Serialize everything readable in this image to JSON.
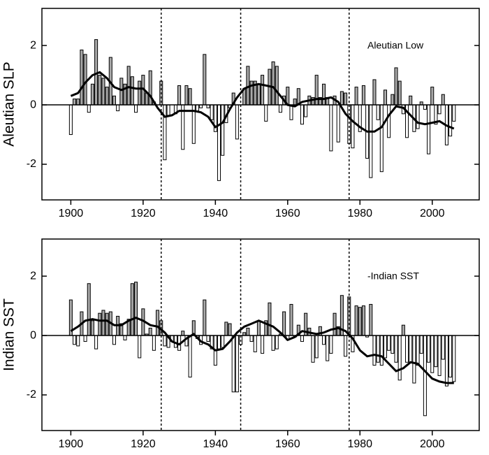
{
  "chart_data": [
    {
      "type": "bar",
      "ylabel": "Aleutian SLP",
      "annotation": "Aleutian Low",
      "positive_color": "#a9a9a9",
      "negative_color": "#ffffff",
      "xlim": [
        1892,
        2013
      ],
      "ylim": [
        -3.2,
        3.25
      ],
      "xticks": [
        1900,
        1920,
        1940,
        1960,
        1980,
        2000
      ],
      "yticks": [
        -2,
        0,
        2
      ],
      "vlines": [
        1925,
        1947,
        1977
      ],
      "x": [
        1900,
        1901,
        1902,
        1903,
        1904,
        1905,
        1906,
        1907,
        1908,
        1909,
        1910,
        1911,
        1912,
        1913,
        1914,
        1915,
        1916,
        1917,
        1918,
        1919,
        1920,
        1921,
        1922,
        1923,
        1924,
        1925,
        1926,
        1927,
        1928,
        1929,
        1930,
        1931,
        1932,
        1933,
        1934,
        1935,
        1936,
        1937,
        1938,
        1939,
        1940,
        1941,
        1942,
        1943,
        1944,
        1945,
        1946,
        1947,
        1948,
        1949,
        1950,
        1951,
        1952,
        1953,
        1954,
        1955,
        1956,
        1957,
        1958,
        1959,
        1960,
        1961,
        1962,
        1963,
        1964,
        1965,
        1966,
        1967,
        1968,
        1969,
        1970,
        1971,
        1972,
        1973,
        1974,
        1975,
        1976,
        1977,
        1978,
        1979,
        1980,
        1981,
        1982,
        1983,
        1984,
        1985,
        1986,
        1987,
        1988,
        1989,
        1990,
        1991,
        1992,
        1993,
        1994,
        1995,
        1996,
        1997,
        1998,
        1999,
        2000,
        2001,
        2002,
        2003,
        2004,
        2005,
        2006
      ],
      "values": [
        -1.0,
        0.2,
        0.2,
        1.85,
        1.7,
        -0.25,
        0.7,
        2.2,
        1.0,
        0.9,
        0.6,
        1.6,
        0.3,
        -0.2,
        0.9,
        0.7,
        1.3,
        0.95,
        -0.25,
        0.8,
        1.0,
        0.4,
        1.15,
        0.1,
        0.0,
        0.8,
        -1.85,
        -0.35,
        0.0,
        -0.3,
        0.65,
        -1.5,
        0.65,
        0.55,
        -1.3,
        -0.2,
        -0.1,
        1.7,
        -0.1,
        -0.5,
        -0.9,
        -2.55,
        -1.7,
        -0.6,
        -0.1,
        0.4,
        -1.15,
        0.0,
        0.55,
        1.3,
        0.8,
        0.8,
        0.7,
        1.0,
        -0.55,
        1.2,
        1.45,
        1.3,
        -0.25,
        0.3,
        0.6,
        -0.5,
        0.2,
        0.55,
        -0.65,
        -0.4,
        0.3,
        0.25,
        1.0,
        0.25,
        0.7,
        0.25,
        -1.55,
        0.3,
        -1.25,
        0.45,
        0.4,
        -1.3,
        -1.45,
        0.6,
        -0.9,
        0.65,
        -1.8,
        -2.45,
        0.85,
        -0.5,
        -2.25,
        0.5,
        -1.1,
        0.35,
        1.25,
        0.8,
        -0.3,
        -1.1,
        0.3,
        -0.9,
        -0.8,
        0.1,
        -0.15,
        -1.65,
        0.6,
        -0.65,
        -0.3,
        0.35,
        -1.35,
        -1.05,
        -0.55
      ],
      "smooth": {
        "x": [
          1900,
          1902,
          1904,
          1906,
          1908,
          1910,
          1912,
          1914,
          1916,
          1918,
          1920,
          1922,
          1924,
          1926,
          1928,
          1930,
          1932,
          1934,
          1936,
          1938,
          1940,
          1942,
          1944,
          1946,
          1948,
          1950,
          1952,
          1954,
          1956,
          1958,
          1960,
          1962,
          1964,
          1966,
          1968,
          1970,
          1972,
          1974,
          1976,
          1978,
          1980,
          1982,
          1984,
          1986,
          1988,
          1990,
          1992,
          1994,
          1996,
          1998,
          2000,
          2002,
          2004,
          2006
        ],
        "values": [
          0.3,
          0.4,
          0.75,
          1.0,
          1.1,
          0.9,
          0.6,
          0.5,
          0.6,
          0.55,
          0.55,
          0.3,
          -0.1,
          -0.4,
          -0.35,
          -0.2,
          -0.2,
          -0.2,
          -0.25,
          -0.4,
          -0.75,
          -0.6,
          -0.15,
          0.25,
          0.55,
          0.65,
          0.7,
          0.65,
          0.6,
          0.3,
          0.0,
          -0.05,
          0.1,
          0.15,
          0.2,
          0.2,
          0.25,
          0.1,
          -0.3,
          -0.55,
          -0.75,
          -0.9,
          -0.9,
          -0.75,
          -0.35,
          -0.05,
          -0.1,
          -0.35,
          -0.6,
          -0.65,
          -0.6,
          -0.55,
          -0.7,
          -0.8
        ]
      }
    },
    {
      "type": "bar",
      "ylabel": "Indian SST",
      "annotation": "-Indian SST",
      "positive_color": "#a9a9a9",
      "negative_color": "#ffffff",
      "xlim": [
        1892,
        2013
      ],
      "ylim": [
        -3.2,
        3.25
      ],
      "xticks": [
        1900,
        1920,
        1940,
        1960,
        1980,
        2000
      ],
      "yticks": [
        -2,
        0,
        2
      ],
      "vlines": [
        1925,
        1947,
        1977
      ],
      "x": [
        1900,
        1901,
        1902,
        1903,
        1904,
        1905,
        1906,
        1907,
        1908,
        1909,
        1910,
        1911,
        1912,
        1913,
        1914,
        1915,
        1916,
        1917,
        1918,
        1919,
        1920,
        1921,
        1922,
        1923,
        1924,
        1925,
        1926,
        1927,
        1928,
        1929,
        1930,
        1931,
        1932,
        1933,
        1934,
        1935,
        1936,
        1937,
        1938,
        1939,
        1940,
        1941,
        1942,
        1943,
        1944,
        1945,
        1946,
        1947,
        1948,
        1949,
        1950,
        1951,
        1952,
        1953,
        1954,
        1955,
        1956,
        1957,
        1958,
        1959,
        1960,
        1961,
        1962,
        1963,
        1964,
        1965,
        1966,
        1967,
        1968,
        1969,
        1970,
        1971,
        1972,
        1973,
        1974,
        1975,
        1976,
        1977,
        1978,
        1979,
        1980,
        1981,
        1982,
        1983,
        1984,
        1985,
        1986,
        1987,
        1988,
        1989,
        1990,
        1991,
        1992,
        1993,
        1994,
        1995,
        1996,
        1997,
        1998,
        1999,
        2000,
        2001,
        2002,
        2003,
        2004,
        2005,
        2006
      ],
      "values": [
        1.2,
        -0.3,
        -0.35,
        0.8,
        -0.2,
        1.75,
        0.5,
        -0.45,
        0.75,
        0.85,
        0.75,
        0.8,
        -0.3,
        0.65,
        0.4,
        -0.15,
        0.55,
        1.75,
        1.8,
        -0.75,
        0.9,
        0.05,
        0.25,
        -0.5,
        0.85,
        0.5,
        -0.35,
        -0.4,
        -0.2,
        -0.4,
        -0.5,
        0.15,
        -0.35,
        -1.4,
        0.5,
        -0.1,
        -0.3,
        1.2,
        -0.2,
        -0.45,
        -1.0,
        -0.45,
        -0.4,
        0.45,
        0.4,
        -1.9,
        -1.9,
        -0.3,
        0.1,
        0.25,
        -0.2,
        -0.55,
        0.5,
        -0.6,
        0.5,
        1.1,
        -0.5,
        -0.45,
        0.05,
        0.8,
        -0.15,
        1.05,
        -0.05,
        0.35,
        -0.2,
        0.75,
        0.25,
        -0.9,
        -0.75,
        0.3,
        -0.3,
        -0.85,
        -0.6,
        0.75,
        0.3,
        1.35,
        -0.7,
        1.3,
        -0.55,
        1.0,
        0.95,
        1.0,
        -0.05,
        1.05,
        -1.0,
        -0.9,
        -1.0,
        -0.75,
        -0.5,
        -0.6,
        -0.9,
        -1.5,
        0.35,
        -0.9,
        -0.9,
        -1.6,
        -1.0,
        -0.6,
        -2.7,
        -0.9,
        -1.25,
        -1.05,
        -1.35,
        -0.8,
        -1.7,
        -1.4,
        -1.55
      ],
      "smooth": {
        "x": [
          1900,
          1902,
          1904,
          1906,
          1908,
          1910,
          1912,
          1914,
          1916,
          1918,
          1920,
          1922,
          1924,
          1926,
          1928,
          1930,
          1932,
          1934,
          1936,
          1938,
          1940,
          1942,
          1944,
          1946,
          1948,
          1950,
          1952,
          1954,
          1956,
          1958,
          1960,
          1962,
          1964,
          1966,
          1968,
          1970,
          1972,
          1974,
          1976,
          1978,
          1980,
          1982,
          1984,
          1986,
          1988,
          1990,
          1992,
          1994,
          1996,
          1998,
          2000,
          2002,
          2004,
          2006
        ],
        "values": [
          0.15,
          0.3,
          0.5,
          0.55,
          0.5,
          0.5,
          0.35,
          0.35,
          0.5,
          0.6,
          0.5,
          0.35,
          0.3,
          0.1,
          -0.2,
          -0.3,
          -0.1,
          0.05,
          -0.2,
          -0.3,
          -0.5,
          -0.45,
          -0.2,
          0.1,
          0.3,
          0.4,
          0.5,
          0.4,
          0.3,
          0.1,
          -0.15,
          -0.05,
          0.15,
          0.1,
          0.05,
          0.1,
          0.2,
          0.25,
          0.15,
          -0.1,
          -0.5,
          -0.7,
          -0.65,
          -0.7,
          -0.95,
          -1.2,
          -1.1,
          -0.9,
          -0.95,
          -1.2,
          -1.45,
          -1.55,
          -1.6,
          -1.6
        ]
      }
    }
  ]
}
